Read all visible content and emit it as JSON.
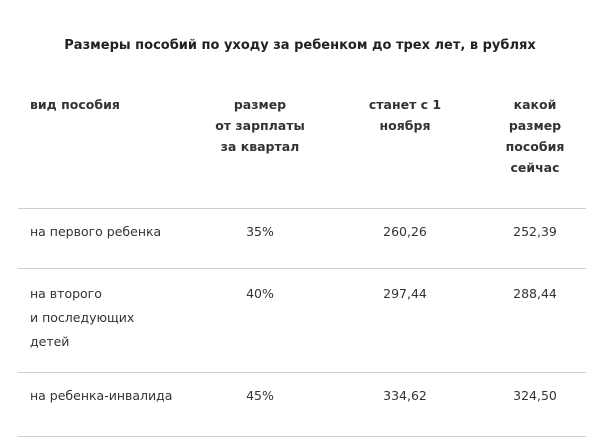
{
  "title": "Размеры пособий по уходу за ребенком до трех лет, в рублях",
  "headers": [
    "вид пособия",
    "размер\nот зарплаты\nза квартал",
    "станет с 1\nноября",
    "какой\nразмер\nпособия\nсейчас"
  ],
  "rows": [
    {
      "type": "на первого ребенка",
      "percent": "35%",
      "new_amount": "260,26",
      "current_amount": "252,39"
    },
    {
      "type": "на второго\nи последующих\nдетей",
      "percent": "40%",
      "new_amount": "297,44",
      "current_amount": "288,44"
    },
    {
      "type": "на ребенка-инвалида",
      "percent": "45%",
      "new_amount": "334,62",
      "current_amount": "324,50"
    }
  ]
}
